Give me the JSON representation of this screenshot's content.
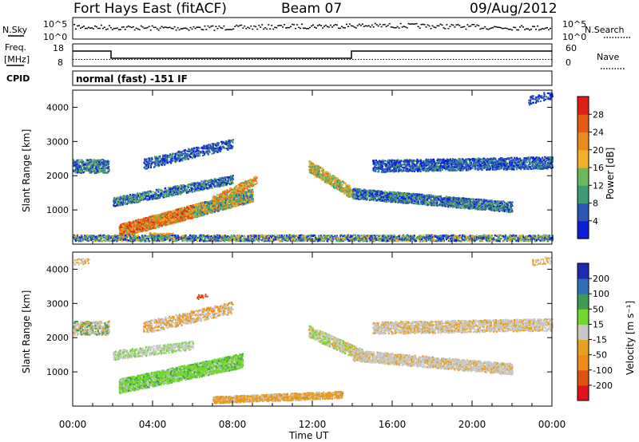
{
  "header": {
    "station": "Fort Hays East (fitACF)",
    "beam": "Beam 07",
    "date": "09/Aug/2012"
  },
  "noise_panel": {
    "left_label": "N.Sky",
    "right_label": "N.Search",
    "ticks_left": [
      "10^5",
      "10^0"
    ],
    "ticks_right": [
      "10^5",
      "10^0"
    ]
  },
  "freq_panel": {
    "left_label_line1": "Freq.",
    "left_label_line2": "[MHz]",
    "right_label": "Nave",
    "ticks_left": [
      "18",
      "8"
    ],
    "ticks_right": [
      "60",
      "0"
    ]
  },
  "cpid": {
    "label": "CPID",
    "value": "normal (fast) -151 IF"
  },
  "power_panel": {
    "ylabel": "Slant Range [km]",
    "yticks": [
      "1000",
      "2000",
      "3000",
      "4000"
    ],
    "colorbar_label": "Power [dB]",
    "colorbar_ticks": [
      "4",
      "8",
      "12",
      "16",
      "20",
      "24",
      "28"
    ],
    "colors": [
      "#0a1edc",
      "#2d56b4",
      "#3f9a78",
      "#6cb85c",
      "#f2b026",
      "#ec8a1e",
      "#e85a14",
      "#e01f14"
    ]
  },
  "velocity_panel": {
    "ylabel": "Slant Range [km]",
    "yticks": [
      "1000",
      "2000",
      "3000",
      "4000"
    ],
    "colorbar_label": "Velocity [m s⁻¹]",
    "colorbar_ticks": [
      "200",
      "100",
      "50",
      "15",
      "-15",
      "-50",
      "-100",
      "-200"
    ],
    "colors": [
      "#1e2ab4",
      "#2f6fb5",
      "#3d9a50",
      "#72d82e",
      "#c8c8c8",
      "#e7a020",
      "#ef8a18",
      "#e05010",
      "#e0141e"
    ]
  },
  "xaxis": {
    "label": "Time UT",
    "ticks": [
      "00:00",
      "04:00",
      "08:00",
      "12:00",
      "16:00",
      "20:00",
      "00:00"
    ]
  },
  "chart_data": {
    "type": "heatmap",
    "x_range_hours": [
      0,
      24
    ],
    "y_range_km": [
      0,
      4500
    ],
    "power_features_approx": [
      {
        "t_start": 0.0,
        "t_end": 1.8,
        "range_center_km": 2300,
        "power_db": 10
      },
      {
        "t_start": 2.5,
        "t_end": 9.0,
        "range_center_km": 900,
        "power_db": 22
      },
      {
        "t_start": 3.5,
        "t_end": 8.0,
        "range_center_km": 2700,
        "power_db": 8
      },
      {
        "t_start": 11.8,
        "t_end": 14.0,
        "range_center_km": 1800,
        "power_db": 16
      },
      {
        "t_start": 14.0,
        "t_end": 22.0,
        "range_center_km": 1400,
        "power_db": 8
      },
      {
        "t_start": 16.0,
        "t_end": 24.0,
        "range_center_km": 2300,
        "power_db": 10
      }
    ],
    "velocity_features_approx": [
      {
        "t_start": 2.5,
        "t_end": 8.5,
        "range_center_km": 1000,
        "velocity_ms": 50
      },
      {
        "t_start": 0.0,
        "t_end": 24.0,
        "range_center_km": 2200,
        "velocity_ms": 0
      },
      {
        "t_start": 7.0,
        "t_end": 13.5,
        "range_center_km": 250,
        "velocity_ms": -50
      }
    ]
  }
}
